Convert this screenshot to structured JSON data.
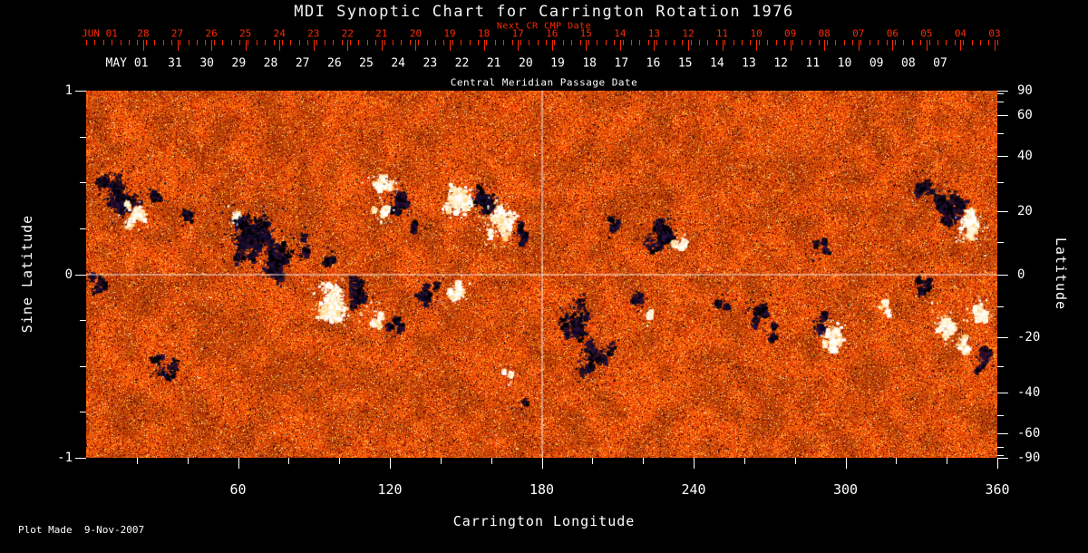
{
  "page": {
    "background": "#000000"
  },
  "footer": {
    "plot_made_label": "Plot Made  9-Nov-2007"
  },
  "chart_data": {
    "type": "heatmap",
    "title": "MDI Synoptic Chart for Carrington Rotation 1976",
    "description": "Solar photospheric magnetic field synoptic map: orange noise background with black/navy (negative polarity) and white (positive polarity) active regions",
    "xlabel": "Carrington Longitude",
    "ylabel_left": "Sine Latitude",
    "ylabel_right": "Latitude",
    "xlim": [
      0,
      360
    ],
    "ylim_sine": [
      -1,
      1
    ],
    "x_major_ticks": [
      60,
      120,
      180,
      240,
      300,
      360
    ],
    "x_minor_step": 20,
    "y_left_labeled_ticks": [
      1,
      0,
      -1
    ],
    "y_left_minor_ticks": [
      0.75,
      0.5,
      0.25,
      -0.25,
      -0.5,
      -0.75
    ],
    "y_right_labeled_ticks": [
      90,
      60,
      40,
      20,
      0,
      -20,
      -40,
      -60,
      -90
    ],
    "y_right_minor_ticks": [
      80,
      70,
      50,
      30,
      10,
      -10,
      -30,
      -50,
      -70,
      -80
    ],
    "reference_lines": {
      "longitude": 180,
      "sine_latitude": 0
    },
    "top_axis_next_cr": {
      "label": "Next CR CMP Date",
      "color": "#ff2a00",
      "first_label": "JUN 01",
      "day_labels": [
        "28",
        "27",
        "26",
        "25",
        "24",
        "23",
        "22",
        "21",
        "20",
        "19",
        "18",
        "17",
        "16",
        "15",
        "14",
        "13",
        "12",
        "11",
        "10",
        "09",
        "08",
        "07",
        "06",
        "05",
        "04",
        "03"
      ]
    },
    "top_axis_cmp": {
      "label": "Central Meridian Passage Date",
      "color": "#ffffff",
      "first_label": "MAY 01",
      "day_labels": [
        "31",
        "30",
        "29",
        "28",
        "27",
        "26",
        "25",
        "24",
        "23",
        "22",
        "21",
        "20",
        "19",
        "18",
        "17",
        "16",
        "15",
        "14",
        "13",
        "12",
        "11",
        "10",
        "09",
        "08",
        "07"
      ]
    },
    "colors": {
      "background": "#000000",
      "text": "#ffffff",
      "red_axis": "#ff2a00",
      "base_orange": "#e04808",
      "bright_speckle": "#ffd080",
      "negative_polarity": "#000008",
      "positive_polarity": "#ffffff"
    },
    "active_regions_format": [
      "longitude_deg",
      "sine_latitude",
      "radius_deg",
      "radius_sine",
      "polarity_n_or_p",
      "intensity"
    ],
    "active_regions": [
      [
        8,
        0.52,
        4,
        0.06,
        "n",
        0.7
      ],
      [
        13,
        0.42,
        5,
        0.09,
        "n",
        1.0
      ],
      [
        19,
        0.33,
        3.5,
        0.06,
        "p",
        0.9
      ],
      [
        27,
        0.45,
        3,
        0.05,
        "n",
        0.45
      ],
      [
        39,
        0.33,
        2.5,
        0.05,
        "n",
        0.6
      ],
      [
        58,
        0.3,
        3,
        0.06,
        "p",
        0.5
      ],
      [
        65,
        0.22,
        7,
        0.11,
        "n",
        1.3
      ],
      [
        75,
        0.08,
        5,
        0.1,
        "n",
        0.9
      ],
      [
        86,
        0.16,
        3,
        0.06,
        "n",
        0.5
      ],
      [
        96,
        0.1,
        2.5,
        0.05,
        "n",
        0.5
      ],
      [
        117,
        0.5,
        4,
        0.06,
        "p",
        0.8
      ],
      [
        123,
        0.42,
        4,
        0.07,
        "n",
        0.9
      ],
      [
        117,
        0.34,
        3,
        0.05,
        "p",
        0.6
      ],
      [
        129,
        0.27,
        2.5,
        0.05,
        "n",
        0.5
      ],
      [
        147,
        0.4,
        5,
        0.08,
        "p",
        1.2
      ],
      [
        157,
        0.42,
        4,
        0.07,
        "n",
        1.1
      ],
      [
        163,
        0.29,
        5,
        0.08,
        "p",
        1.3
      ],
      [
        171,
        0.22,
        3,
        0.06,
        "n",
        0.6
      ],
      [
        209,
        0.28,
        2.5,
        0.05,
        "n",
        0.6
      ],
      [
        227,
        0.22,
        5,
        0.08,
        "n",
        1.3
      ],
      [
        235,
        0.17,
        2.5,
        0.05,
        "p",
        0.8
      ],
      [
        290,
        0.14,
        2.5,
        0.05,
        "n",
        0.5
      ],
      [
        331,
        0.5,
        3.5,
        0.06,
        "n",
        0.7
      ],
      [
        341,
        0.37,
        5,
        0.08,
        "n",
        1.4
      ],
      [
        349,
        0.26,
        4,
        0.07,
        "p",
        1.2
      ],
      [
        5,
        -0.08,
        4,
        0.07,
        "n",
        0.5
      ],
      [
        30,
        -0.52,
        6,
        0.07,
        "n",
        0.35
      ],
      [
        97,
        -0.15,
        6,
        0.09,
        "p",
        1.3
      ],
      [
        107,
        -0.11,
        4,
        0.07,
        "n",
        1.0
      ],
      [
        114,
        -0.22,
        3,
        0.05,
        "p",
        0.6
      ],
      [
        121,
        -0.28,
        3,
        0.05,
        "n",
        0.5
      ],
      [
        135,
        -0.1,
        4,
        0.07,
        "n",
        0.7
      ],
      [
        145,
        -0.1,
        3.5,
        0.06,
        "p",
        0.9
      ],
      [
        166,
        -0.53,
        2,
        0.04,
        "p",
        0.4
      ],
      [
        172,
        -0.7,
        2,
        0.04,
        "n",
        0.3
      ],
      [
        193,
        -0.25,
        5,
        0.11,
        "n",
        0.7
      ],
      [
        200,
        -0.45,
        5,
        0.09,
        "n",
        0.8
      ],
      [
        217,
        -0.14,
        2.5,
        0.05,
        "n",
        0.6
      ],
      [
        221,
        -0.22,
        2,
        0.04,
        "p",
        0.45
      ],
      [
        251,
        -0.14,
        2.5,
        0.05,
        "n",
        0.5
      ],
      [
        265,
        -0.2,
        3.5,
        0.07,
        "n",
        0.7
      ],
      [
        270,
        -0.33,
        2.5,
        0.05,
        "n",
        0.5
      ],
      [
        289,
        -0.27,
        2.5,
        0.05,
        "n",
        0.6
      ],
      [
        295,
        -0.34,
        3.5,
        0.06,
        "p",
        1.2
      ],
      [
        315,
        -0.18,
        2,
        0.04,
        "p",
        0.5
      ],
      [
        330,
        -0.06,
        3.5,
        0.06,
        "n",
        0.6
      ],
      [
        339,
        -0.28,
        3.5,
        0.06,
        "p",
        0.9
      ],
      [
        352,
        -0.2,
        3.5,
        0.06,
        "p",
        1.0
      ],
      [
        354,
        -0.46,
        3.5,
        0.06,
        "n",
        0.8
      ],
      [
        347,
        -0.38,
        2.5,
        0.05,
        "p",
        0.7
      ]
    ]
  }
}
